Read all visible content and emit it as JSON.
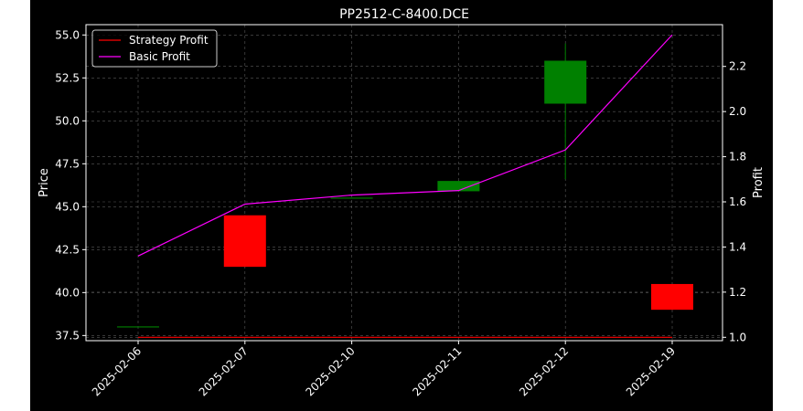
{
  "chart_data": {
    "type": "candlestick",
    "title": "PP2512-C-8400.DCE",
    "xlabel": "",
    "ylabel": "Price",
    "y2label": "Profit",
    "categories": [
      "2025-02-06",
      "2025-02-07",
      "2025-02-10",
      "2025-02-11",
      "2025-02-12",
      "2025-02-19"
    ],
    "ylim": [
      37.2,
      55.6
    ],
    "y_ticks": [
      37.5,
      40.0,
      42.5,
      45.0,
      47.5,
      50.0,
      52.5,
      55.0
    ],
    "y2lim": [
      0.985,
      2.385
    ],
    "y2_ticks": [
      1.0,
      1.2,
      1.4,
      1.6,
      1.8,
      2.0,
      2.2
    ],
    "grid": true,
    "legend_position": "top-left",
    "candles": [
      {
        "date": "2025-02-06",
        "open": 38.0,
        "high": 38.0,
        "low": 38.0,
        "close": 38.0
      },
      {
        "date": "2025-02-07",
        "open": 44.5,
        "high": 44.5,
        "low": 41.5,
        "close": 41.5
      },
      {
        "date": "2025-02-10",
        "open": 45.5,
        "high": 45.5,
        "low": 45.5,
        "close": 45.5
      },
      {
        "date": "2025-02-11",
        "open": 45.9,
        "high": 46.5,
        "low": 45.9,
        "close": 46.5
      },
      {
        "date": "2025-02-12",
        "open": 51.0,
        "high": 54.5,
        "low": 46.6,
        "close": 53.5
      },
      {
        "date": "2025-02-19",
        "open": 40.5,
        "high": 40.5,
        "low": 39.0,
        "close": 39.0
      }
    ],
    "series": [
      {
        "name": "Strategy Profit",
        "axis": "right",
        "color": "#ff0000",
        "values": [
          1.0,
          1.0,
          1.0,
          1.0,
          1.0,
          1.0
        ]
      },
      {
        "name": "Basic Profit",
        "axis": "right",
        "color": "#ff00ff",
        "values": [
          1.36,
          1.59,
          1.63,
          1.65,
          1.83,
          2.34
        ]
      }
    ],
    "colors": {
      "up": "#008000",
      "down": "#ff0000",
      "background": "#000000",
      "text": "#ffffff"
    }
  }
}
